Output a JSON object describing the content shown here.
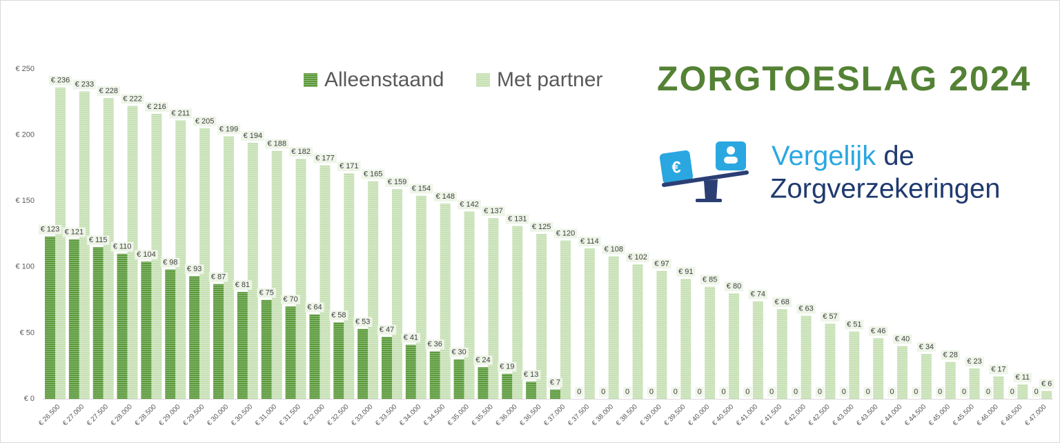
{
  "chart_data": {
    "type": "bar",
    "title": "ZORGTOESLAG 2024",
    "categories": [
      "€ 26.500",
      "€ 27.000",
      "€ 27.500",
      "€ 28.000",
      "€ 28.500",
      "€ 29.000",
      "€ 29.500",
      "€ 30.000",
      "€ 30.500",
      "€ 31.000",
      "€ 31.500",
      "€ 32.000",
      "€ 32.500",
      "€ 33.000",
      "€ 33.500",
      "€ 34.000",
      "€ 34.500",
      "€ 35.000",
      "€ 35.500",
      "€ 36.000",
      "€ 36.500",
      "€ 37.000",
      "€ 37.500",
      "€ 38.000",
      "€ 38.500",
      "€ 39.000",
      "€ 39.500",
      "€ 40.000",
      "€ 40.500",
      "€ 41.000",
      "€ 41.500",
      "€ 42.000",
      "€ 42.500",
      "€ 43.000",
      "€ 43.500",
      "€ 44.000",
      "€ 44.500",
      "€ 45.000",
      "€ 45.500",
      "€ 46.000",
      "€ 46.500",
      "€ 47.000"
    ],
    "series": [
      {
        "name": "Alleenstaand",
        "color": "#5b9a3b",
        "values": [
          123,
          121,
          115,
          110,
          104,
          98,
          93,
          87,
          81,
          75,
          70,
          64,
          58,
          53,
          47,
          41,
          36,
          30,
          24,
          19,
          13,
          7,
          0,
          0,
          0,
          0,
          0,
          0,
          0,
          0,
          0,
          0,
          0,
          0,
          0,
          0,
          0,
          0,
          0,
          0,
          0,
          0
        ],
        "value_labels": [
          "€ 123",
          "€ 121",
          "€ 115",
          "€ 110",
          "€ 104",
          "€ 98",
          "€ 93",
          "€ 87",
          "€ 81",
          "€ 75",
          "€ 70",
          "€ 64",
          "€ 58",
          "€ 53",
          "€ 47",
          "€ 41",
          "€ 36",
          "€ 30",
          "€ 24",
          "€ 19",
          "€ 13",
          "€ 7",
          "0",
          "0",
          "0",
          "0",
          "0",
          "0",
          "0",
          "0",
          "0",
          "0",
          "0",
          "0",
          "0",
          "0",
          "0",
          "0",
          "0",
          "0",
          "0",
          "0"
        ]
      },
      {
        "name": "Met partner",
        "color": "#c6e0b4",
        "values": [
          236,
          233,
          228,
          222,
          216,
          211,
          205,
          199,
          194,
          188,
          182,
          177,
          171,
          165,
          159,
          154,
          148,
          142,
          137,
          131,
          125,
          120,
          114,
          108,
          102,
          97,
          91,
          85,
          80,
          74,
          68,
          63,
          57,
          51,
          46,
          40,
          34,
          28,
          23,
          17,
          11,
          6
        ],
        "value_labels": [
          "€ 236",
          "€ 233",
          "€ 228",
          "€ 222",
          "€ 216",
          "€ 211",
          "€ 205",
          "€ 199",
          "€ 194",
          "€ 188",
          "€ 182",
          "€ 177",
          "€ 171",
          "€ 165",
          "€ 159",
          "€ 154",
          "€ 148",
          "€ 142",
          "€ 137",
          "€ 131",
          "€ 125",
          "€ 120",
          "€ 114",
          "€ 108",
          "€ 102",
          "€ 97",
          "€ 91",
          "€ 85",
          "€ 80",
          "€ 74",
          "€ 68",
          "€ 63",
          "€ 57",
          "€ 51",
          "€ 46",
          "€ 40",
          "€ 34",
          "€ 28",
          "€ 23",
          "€ 17",
          "€ 11",
          "€ 6"
        ]
      }
    ],
    "ylim": [
      0,
      250
    ],
    "yticks": [
      {
        "value": 0,
        "label": "€ 0"
      },
      {
        "value": 50,
        "label": "€ 50"
      },
      {
        "value": 100,
        "label": "€ 100"
      },
      {
        "value": 150,
        "label": "€ 150"
      },
      {
        "value": 200,
        "label": "€ 200"
      },
      {
        "value": 250,
        "label": "€ 250"
      }
    ],
    "grid": false,
    "legend": "top"
  },
  "logo": {
    "word1": "Vergelijk",
    "word2": "de",
    "line2": "Zorgverzekeringen",
    "icon": "€"
  }
}
